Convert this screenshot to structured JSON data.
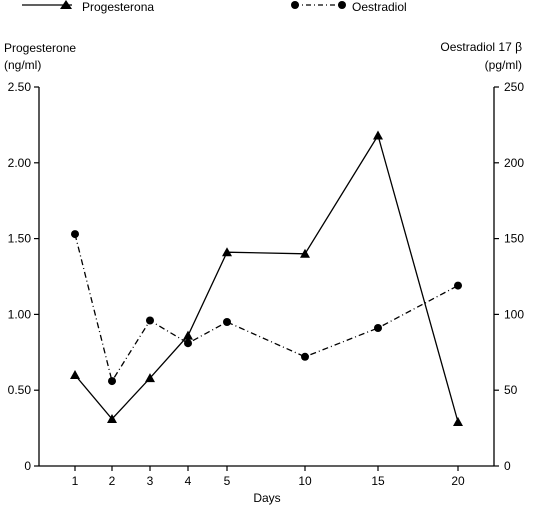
{
  "chart_data": {
    "type": "line",
    "legend_position": "top",
    "grid": false,
    "xlabel": "Days",
    "x_categories": [
      "1",
      "2",
      "3",
      "4",
      "5",
      "10",
      "15",
      "20"
    ],
    "left_axis": {
      "label_line1": "Progesterone",
      "label_line2": "(ng/ml)",
      "ylim": [
        0,
        2.5
      ],
      "ticks": [
        0,
        0.5,
        1.0,
        1.5,
        2.0,
        2.5
      ],
      "tick_labels": [
        "0",
        "0.50",
        "1.00",
        "1.50",
        "2.00",
        "2.50"
      ]
    },
    "right_axis": {
      "label_line1": "Oestradiol 17 β",
      "label_line2": "(pg/ml)",
      "ylim": [
        0,
        250
      ],
      "ticks": [
        0,
        50,
        100,
        150,
        200,
        250
      ],
      "tick_labels": [
        "0",
        "50",
        "100",
        "150",
        "200",
        "250"
      ]
    },
    "series": [
      {
        "name": "Progesterona",
        "axis": "left",
        "marker": "triangle",
        "line_style": "solid",
        "values": [
          0.6,
          0.31,
          0.58,
          0.86,
          1.41,
          1.4,
          2.18,
          0.29
        ]
      },
      {
        "name": "Oestradiol",
        "axis": "right",
        "marker": "circle",
        "line_style": "dashdot",
        "values": [
          153,
          56,
          96,
          81,
          95,
          72,
          91,
          119
        ]
      }
    ]
  }
}
